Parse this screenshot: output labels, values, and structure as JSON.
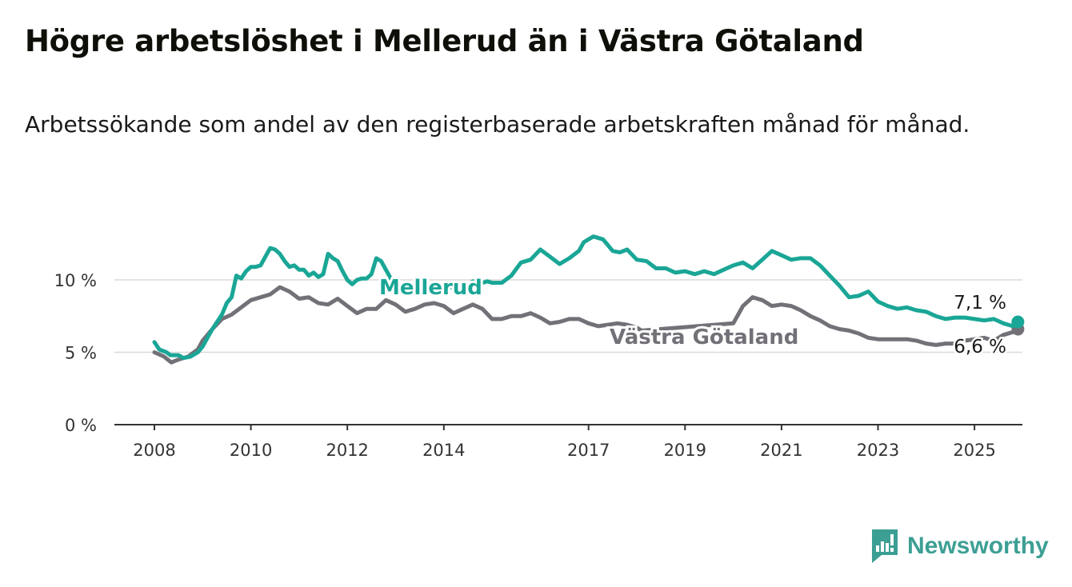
{
  "title": "Högre arbetslöshet i Mellerud än i Västra Götaland",
  "subtitle": "Arbetssökande som andel av den registerbaserade arbetskraften månad för månad.",
  "brand": "Newsworthy",
  "colors": {
    "mellerud": "#1aa696",
    "vg": "#737078",
    "grid": "#d9d9d9",
    "axis": "#333333"
  },
  "chart_data": {
    "type": "line",
    "ylim": [
      0,
      13.5
    ],
    "xlim": [
      2007.5,
      2025.95
    ],
    "yticks": [
      0,
      5,
      10
    ],
    "ytick_labels": [
      "0 %",
      "5 %",
      "10 %"
    ],
    "xticks": [
      2008,
      2010,
      2012,
      2014,
      2017,
      2019,
      2021,
      2023,
      2025
    ],
    "xtick_labels": [
      "2008",
      "2010",
      "2012",
      "2014",
      "2017",
      "2019",
      "2021",
      "2023",
      "2025"
    ],
    "grid": true,
    "legend": "inline labels",
    "series": [
      {
        "name": "Mellerud",
        "end_label": "7,1 %",
        "points": [
          [
            2008.0,
            5.7
          ],
          [
            2008.1,
            5.2
          ],
          [
            2008.25,
            5.0
          ],
          [
            2008.33,
            4.8
          ],
          [
            2008.5,
            4.8
          ],
          [
            2008.6,
            4.6
          ],
          [
            2008.75,
            4.7
          ],
          [
            2008.9,
            5.0
          ],
          [
            2009.0,
            5.4
          ],
          [
            2009.1,
            6.0
          ],
          [
            2009.2,
            6.6
          ],
          [
            2009.3,
            7.1
          ],
          [
            2009.4,
            7.6
          ],
          [
            2009.5,
            8.4
          ],
          [
            2009.6,
            8.8
          ],
          [
            2009.7,
            10.3
          ],
          [
            2009.8,
            10.1
          ],
          [
            2009.9,
            10.6
          ],
          [
            2010.0,
            10.9
          ],
          [
            2010.1,
            10.9
          ],
          [
            2010.2,
            11.0
          ],
          [
            2010.3,
            11.6
          ],
          [
            2010.4,
            12.2
          ],
          [
            2010.5,
            12.1
          ],
          [
            2010.6,
            11.8
          ],
          [
            2010.7,
            11.3
          ],
          [
            2010.8,
            10.9
          ],
          [
            2010.9,
            11.0
          ],
          [
            2011.0,
            10.7
          ],
          [
            2011.1,
            10.7
          ],
          [
            2011.2,
            10.3
          ],
          [
            2011.3,
            10.5
          ],
          [
            2011.4,
            10.2
          ],
          [
            2011.5,
            10.4
          ],
          [
            2011.6,
            11.8
          ],
          [
            2011.7,
            11.5
          ],
          [
            2011.8,
            11.3
          ],
          [
            2011.9,
            10.6
          ],
          [
            2012.0,
            10.0
          ],
          [
            2012.1,
            9.7
          ],
          [
            2012.2,
            10.0
          ],
          [
            2012.3,
            10.1
          ],
          [
            2012.4,
            10.1
          ],
          [
            2012.5,
            10.4
          ],
          [
            2012.6,
            11.5
          ],
          [
            2012.7,
            11.3
          ],
          [
            2012.8,
            10.7
          ],
          [
            2012.9,
            10.1
          ],
          [
            2013.0,
            9.7
          ],
          [
            2013.1,
            9.5
          ],
          [
            2013.2,
            9.2
          ],
          [
            2014.5,
            9.6
          ],
          [
            2014.6,
            9.9
          ],
          [
            2014.8,
            9.8
          ],
          [
            2014.9,
            9.9
          ],
          [
            2015.0,
            9.8
          ],
          [
            2015.2,
            9.8
          ],
          [
            2015.4,
            10.3
          ],
          [
            2015.6,
            11.2
          ],
          [
            2015.8,
            11.4
          ],
          [
            2016.0,
            12.1
          ],
          [
            2016.2,
            11.6
          ],
          [
            2016.4,
            11.1
          ],
          [
            2016.6,
            11.5
          ],
          [
            2016.8,
            12.0
          ],
          [
            2016.9,
            12.6
          ],
          [
            2017.1,
            13.0
          ],
          [
            2017.3,
            12.8
          ],
          [
            2017.5,
            12.0
          ],
          [
            2017.65,
            11.9
          ],
          [
            2017.8,
            12.1
          ],
          [
            2018.0,
            11.4
          ],
          [
            2018.2,
            11.3
          ],
          [
            2018.4,
            10.8
          ],
          [
            2018.6,
            10.8
          ],
          [
            2018.8,
            10.5
          ],
          [
            2019.0,
            10.6
          ],
          [
            2019.2,
            10.4
          ],
          [
            2019.4,
            10.6
          ],
          [
            2019.6,
            10.4
          ],
          [
            2019.8,
            10.7
          ],
          [
            2020.0,
            11.0
          ],
          [
            2020.2,
            11.2
          ],
          [
            2020.4,
            10.8
          ],
          [
            2020.6,
            11.4
          ],
          [
            2020.8,
            12.0
          ],
          [
            2021.0,
            11.7
          ],
          [
            2021.2,
            11.4
          ],
          [
            2021.4,
            11.5
          ],
          [
            2021.6,
            11.5
          ],
          [
            2021.8,
            11.0
          ],
          [
            2022.0,
            10.3
          ],
          [
            2022.2,
            9.6
          ],
          [
            2022.4,
            8.8
          ],
          [
            2022.6,
            8.9
          ],
          [
            2022.8,
            9.2
          ],
          [
            2023.0,
            8.5
          ],
          [
            2023.2,
            8.2
          ],
          [
            2023.4,
            8.0
          ],
          [
            2023.6,
            8.1
          ],
          [
            2023.8,
            7.9
          ],
          [
            2024.0,
            7.8
          ],
          [
            2024.2,
            7.5
          ],
          [
            2024.4,
            7.3
          ],
          [
            2024.6,
            7.4
          ],
          [
            2024.8,
            7.4
          ],
          [
            2025.0,
            7.3
          ],
          [
            2025.2,
            7.2
          ],
          [
            2025.4,
            7.3
          ],
          [
            2025.6,
            7.0
          ],
          [
            2025.8,
            6.8
          ],
          [
            2025.9,
            7.1
          ]
        ]
      },
      {
        "name": "Västra Götaland",
        "end_label": "6,6 %",
        "points": [
          [
            2008.0,
            5.0
          ],
          [
            2008.2,
            4.7
          ],
          [
            2008.35,
            4.3
          ],
          [
            2008.5,
            4.5
          ],
          [
            2008.7,
            4.7
          ],
          [
            2008.9,
            5.2
          ],
          [
            2009.0,
            5.8
          ],
          [
            2009.2,
            6.6
          ],
          [
            2009.4,
            7.3
          ],
          [
            2009.6,
            7.6
          ],
          [
            2009.8,
            8.1
          ],
          [
            2010.0,
            8.6
          ],
          [
            2010.2,
            8.8
          ],
          [
            2010.4,
            9.0
          ],
          [
            2010.6,
            9.5
          ],
          [
            2010.8,
            9.2
          ],
          [
            2011.0,
            8.7
          ],
          [
            2011.2,
            8.8
          ],
          [
            2011.4,
            8.4
          ],
          [
            2011.6,
            8.3
          ],
          [
            2011.8,
            8.7
          ],
          [
            2012.0,
            8.2
          ],
          [
            2012.2,
            7.7
          ],
          [
            2012.4,
            8.0
          ],
          [
            2012.6,
            8.0
          ],
          [
            2012.8,
            8.6
          ],
          [
            2013.0,
            8.3
          ],
          [
            2013.2,
            7.8
          ],
          [
            2013.4,
            8.0
          ],
          [
            2013.6,
            8.3
          ],
          [
            2013.8,
            8.4
          ],
          [
            2014.0,
            8.2
          ],
          [
            2014.2,
            7.7
          ],
          [
            2014.4,
            8.0
          ],
          [
            2014.6,
            8.3
          ],
          [
            2014.8,
            8.0
          ],
          [
            2015.0,
            7.3
          ],
          [
            2015.2,
            7.3
          ],
          [
            2015.4,
            7.5
          ],
          [
            2015.6,
            7.5
          ],
          [
            2015.8,
            7.7
          ],
          [
            2016.0,
            7.4
          ],
          [
            2016.2,
            7.0
          ],
          [
            2016.4,
            7.1
          ],
          [
            2016.6,
            7.3
          ],
          [
            2016.8,
            7.3
          ],
          [
            2017.0,
            7.0
          ],
          [
            2017.2,
            6.8
          ],
          [
            2017.4,
            6.9
          ],
          [
            2017.6,
            7.0
          ],
          [
            2017.8,
            6.9
          ],
          [
            2018.0,
            6.7
          ],
          [
            2018.1,
            6.5
          ],
          [
            2020.0,
            7.0
          ],
          [
            2020.2,
            8.2
          ],
          [
            2020.4,
            8.8
          ],
          [
            2020.6,
            8.6
          ],
          [
            2020.8,
            8.2
          ],
          [
            2021.0,
            8.3
          ],
          [
            2021.2,
            8.2
          ],
          [
            2021.4,
            7.9
          ],
          [
            2021.6,
            7.5
          ],
          [
            2021.8,
            7.2
          ],
          [
            2022.0,
            6.8
          ],
          [
            2022.2,
            6.6
          ],
          [
            2022.4,
            6.5
          ],
          [
            2022.6,
            6.3
          ],
          [
            2022.8,
            6.0
          ],
          [
            2023.0,
            5.9
          ],
          [
            2023.2,
            5.9
          ],
          [
            2023.4,
            5.9
          ],
          [
            2023.6,
            5.9
          ],
          [
            2023.8,
            5.8
          ],
          [
            2024.0,
            5.6
          ],
          [
            2024.2,
            5.5
          ],
          [
            2024.4,
            5.6
          ],
          [
            2024.6,
            5.6
          ],
          [
            2024.8,
            5.8
          ],
          [
            2025.0,
            5.9
          ],
          [
            2025.2,
            6.0
          ],
          [
            2025.4,
            5.8
          ],
          [
            2025.6,
            6.2
          ],
          [
            2025.8,
            6.4
          ],
          [
            2025.9,
            6.6
          ]
        ]
      }
    ]
  }
}
